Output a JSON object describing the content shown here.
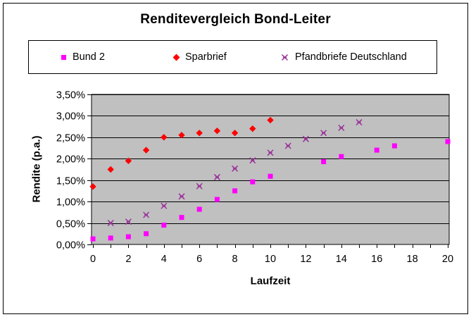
{
  "window": {
    "background": "#FFFFFF",
    "border_color": "#000000"
  },
  "chart_data": {
    "type": "scatter",
    "title": "Renditevergleich Bond-Leiter",
    "xlabel": "Laufzeit",
    "ylabel": "Rendite (p.a.)",
    "xlim": [
      0,
      20
    ],
    "ylim_percent": [
      0,
      3.5
    ],
    "x_tick_step": 1,
    "x_label_values": [
      0,
      2,
      4,
      6,
      8,
      10,
      12,
      14,
      16,
      18,
      20
    ],
    "y_tick_labels": [
      "0,00%",
      "0,50%",
      "1,00%",
      "1,50%",
      "2,00%",
      "2,50%",
      "3,00%",
      "3,50%"
    ],
    "plot_bg": "#C0C0C0",
    "grid_color": "#000000",
    "legend_position": "top",
    "series": [
      {
        "name": "Bund 2",
        "marker": "square",
        "color": "#FF00FF",
        "points": [
          [
            0,
            0.13
          ],
          [
            1,
            0.15
          ],
          [
            2,
            0.18
          ],
          [
            3,
            0.25
          ],
          [
            4,
            0.45
          ],
          [
            5,
            0.63
          ],
          [
            6,
            0.82
          ],
          [
            7,
            1.05
          ],
          [
            8,
            1.25
          ],
          [
            9,
            1.46
          ],
          [
            10,
            1.59
          ],
          [
            13,
            1.93
          ],
          [
            14,
            2.05
          ],
          [
            16,
            2.2
          ],
          [
            17,
            2.3
          ],
          [
            20,
            2.4
          ]
        ]
      },
      {
        "name": "Sparbrief",
        "marker": "diamond",
        "color": "#FF0000",
        "points": [
          [
            0,
            1.35
          ],
          [
            1,
            1.75
          ],
          [
            2,
            1.95
          ],
          [
            3,
            2.2
          ],
          [
            4,
            2.5
          ],
          [
            5,
            2.55
          ],
          [
            6,
            2.6
          ],
          [
            7,
            2.65
          ],
          [
            8,
            2.6
          ],
          [
            9,
            2.7
          ],
          [
            10,
            2.9
          ]
        ]
      },
      {
        "name": "Pfandbriefe Deutschland",
        "marker": "star",
        "color": "#993399",
        "points": [
          [
            1,
            0.5
          ],
          [
            2,
            0.53
          ],
          [
            3,
            0.69
          ],
          [
            4,
            0.9
          ],
          [
            5,
            1.12
          ],
          [
            6,
            1.36
          ],
          [
            7,
            1.57
          ],
          [
            8,
            1.77
          ],
          [
            9,
            1.96
          ],
          [
            10,
            2.14
          ],
          [
            11,
            2.3
          ],
          [
            12,
            2.46
          ],
          [
            13,
            2.6
          ],
          [
            14,
            2.72
          ],
          [
            15,
            2.85
          ]
        ]
      }
    ]
  }
}
